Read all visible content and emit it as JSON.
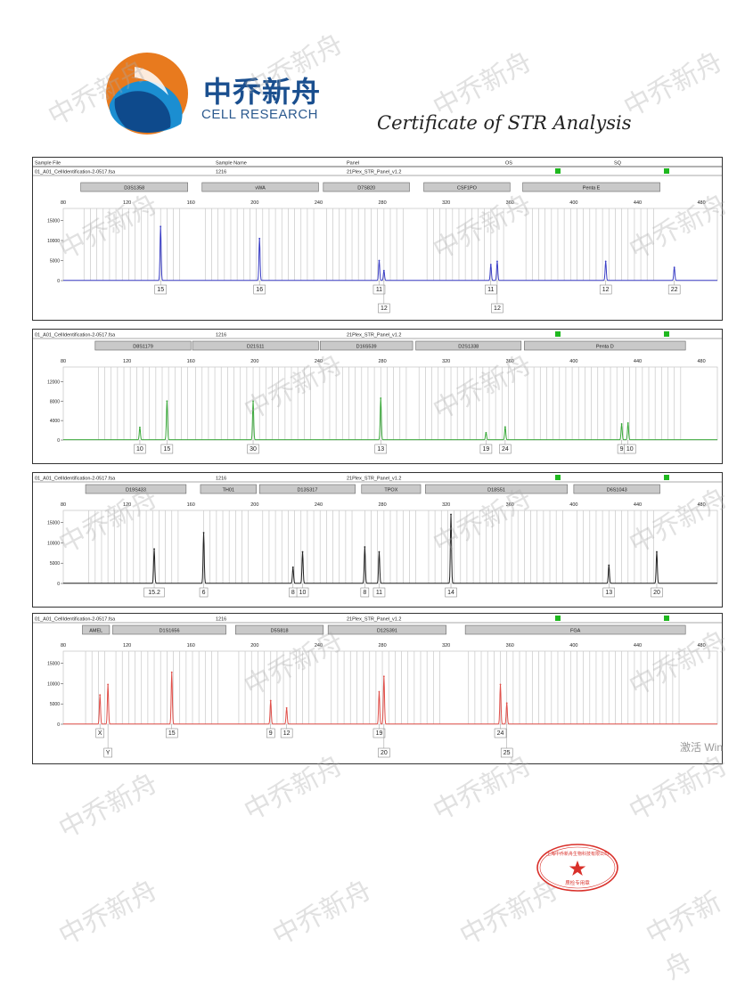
{
  "header": {
    "logo_cn": "中乔新舟",
    "logo_en": "CELL RESEARCH",
    "certificate_title": "Certificate of STR Analysis"
  },
  "table_header": {
    "col_sample_file": "Sample File",
    "col_sample_name": "Sample Name",
    "col_panel": "Panel",
    "col_os": "OS",
    "col_sq": "SQ"
  },
  "watermark": "中乔新舟",
  "seal_text": "上海中乔新舟生物科技有限公司",
  "seal_sub": "质检专用章",
  "overlay_text": "激活 Win",
  "colors": {
    "blue": "#3b3fc6",
    "green": "#3aa83a",
    "black": "#222222",
    "red": "#e0504a",
    "status_green": "#1fb81f",
    "bin_line": "#c8c8c8",
    "locus_box": "#c9c9c9"
  },
  "chart_data": [
    {
      "type": "line",
      "dye": "blue",
      "sample_file": "01_A01_CellIdentification-2-0517.fsa",
      "sample_name": "1216",
      "panel": "21Plex_STR_Panel_v1.2",
      "xlim": [
        80,
        490
      ],
      "xticks": [
        80,
        120,
        160,
        200,
        240,
        280,
        320,
        360,
        400,
        440,
        480
      ],
      "ylim": [
        0,
        18000
      ],
      "yticks": [
        0,
        5000,
        10000,
        15000
      ],
      "loci": [
        {
          "name": "D3S1358",
          "start": 91,
          "end": 158
        },
        {
          "name": "vWA",
          "start": 167,
          "end": 240
        },
        {
          "name": "D7S820",
          "start": 243,
          "end": 297
        },
        {
          "name": "CSF1PO",
          "start": 306,
          "end": 360
        },
        {
          "name": "Penta E",
          "start": 368,
          "end": 454
        }
      ],
      "peaks": [
        {
          "x": 141,
          "y": 13500,
          "allele": "15"
        },
        {
          "x": 203,
          "y": 10500,
          "allele": "16"
        },
        {
          "x": 278,
          "y": 5000,
          "allele": "11"
        },
        {
          "x": 281,
          "y": 2500,
          "allele": "12"
        },
        {
          "x": 348,
          "y": 4000,
          "allele": "11"
        },
        {
          "x": 352,
          "y": 4800,
          "allele": "12"
        },
        {
          "x": 420,
          "y": 4800,
          "allele": "12"
        },
        {
          "x": 463,
          "y": 3300,
          "allele": "22"
        }
      ]
    },
    {
      "type": "line",
      "dye": "green",
      "sample_file": "01_A01_CellIdentification-2-0517.fsa",
      "sample_name": "1216",
      "panel": "21Plex_STR_Panel_v1.2",
      "xlim": [
        80,
        490
      ],
      "xticks": [
        80,
        120,
        160,
        200,
        240,
        280,
        320,
        360,
        400,
        440,
        480
      ],
      "ylim": [
        0,
        15000
      ],
      "yticks": [
        0,
        4000,
        8000,
        12000
      ],
      "loci": [
        {
          "name": "D8S1179",
          "start": 100,
          "end": 160
        },
        {
          "name": "D21S11",
          "start": 161,
          "end": 240
        },
        {
          "name": "D16S539",
          "start": 241,
          "end": 299
        },
        {
          "name": "D2S1338",
          "start": 301,
          "end": 367
        },
        {
          "name": "Penta D",
          "start": 369,
          "end": 470
        }
      ],
      "peaks": [
        {
          "x": 128,
          "y": 2600,
          "allele": "10"
        },
        {
          "x": 145,
          "y": 8000,
          "allele": "15"
        },
        {
          "x": 199,
          "y": 8000,
          "allele": "30"
        },
        {
          "x": 279,
          "y": 8600,
          "allele": "13"
        },
        {
          "x": 345,
          "y": 1500,
          "allele": "19"
        },
        {
          "x": 357,
          "y": 2700,
          "allele": "24"
        },
        {
          "x": 430,
          "y": 3300,
          "allele": "9"
        },
        {
          "x": 434,
          "y": 3500,
          "allele": "10"
        }
      ]
    },
    {
      "type": "line",
      "dye": "black",
      "sample_file": "01_A01_CellIdentification-2-0517.fsa",
      "sample_name": "1216",
      "panel": "21Plex_STR_Panel_v1.2",
      "xlim": [
        80,
        490
      ],
      "xticks": [
        80,
        120,
        160,
        200,
        240,
        280,
        320,
        360,
        400,
        440,
        480
      ],
      "ylim": [
        0,
        18000
      ],
      "yticks": [
        0,
        5000,
        10000,
        15000
      ],
      "loci": [
        {
          "name": "D19S433",
          "start": 94,
          "end": 157
        },
        {
          "name": "TH01",
          "start": 166,
          "end": 201
        },
        {
          "name": "D13S317",
          "start": 203,
          "end": 263
        },
        {
          "name": "TPOX",
          "start": 267,
          "end": 304
        },
        {
          "name": "D18S51",
          "start": 307,
          "end": 396
        },
        {
          "name": "D6S1043",
          "start": 400,
          "end": 454
        }
      ],
      "peaks": [
        {
          "x": 137,
          "y": 8500,
          "allele": "15.2"
        },
        {
          "x": 168,
          "y": 12500,
          "allele": "6"
        },
        {
          "x": 224,
          "y": 4000,
          "allele": "8"
        },
        {
          "x": 230,
          "y": 7800,
          "allele": "10"
        },
        {
          "x": 269,
          "y": 9000,
          "allele": "8"
        },
        {
          "x": 278,
          "y": 7800,
          "allele": "11"
        },
        {
          "x": 323,
          "y": 17000,
          "allele": "14"
        },
        {
          "x": 422,
          "y": 4500,
          "allele": "13"
        },
        {
          "x": 452,
          "y": 7800,
          "allele": "20"
        }
      ]
    },
    {
      "type": "line",
      "dye": "red",
      "sample_file": "01_A01_CellIdentification-2-0517.fsa",
      "sample_name": "1216",
      "panel": "21Plex_STR_Panel_v1.2",
      "xlim": [
        80,
        490
      ],
      "xticks": [
        80,
        120,
        160,
        200,
        240,
        280,
        320,
        360,
        400,
        440,
        480
      ],
      "ylim": [
        0,
        18000
      ],
      "yticks": [
        0,
        5000,
        10000,
        15000
      ],
      "loci": [
        {
          "name": "AMEL",
          "start": 92,
          "end": 109
        },
        {
          "name": "D1S1656",
          "start": 111,
          "end": 182
        },
        {
          "name": "D5S818",
          "start": 188,
          "end": 243
        },
        {
          "name": "D12S391",
          "start": 246,
          "end": 320
        },
        {
          "name": "FGA",
          "start": 332,
          "end": 470
        }
      ],
      "peaks": [
        {
          "x": 103,
          "y": 7200,
          "allele": "X"
        },
        {
          "x": 108,
          "y": 9800,
          "allele": "Y"
        },
        {
          "x": 148,
          "y": 12800,
          "allele": "15"
        },
        {
          "x": 210,
          "y": 5800,
          "allele": "9"
        },
        {
          "x": 220,
          "y": 4000,
          "allele": "12"
        },
        {
          "x": 278,
          "y": 8000,
          "allele": "19"
        },
        {
          "x": 281,
          "y": 11800,
          "allele": "20"
        },
        {
          "x": 354,
          "y": 9800,
          "allele": "24"
        },
        {
          "x": 358,
          "y": 5200,
          "allele": "25"
        }
      ]
    }
  ]
}
